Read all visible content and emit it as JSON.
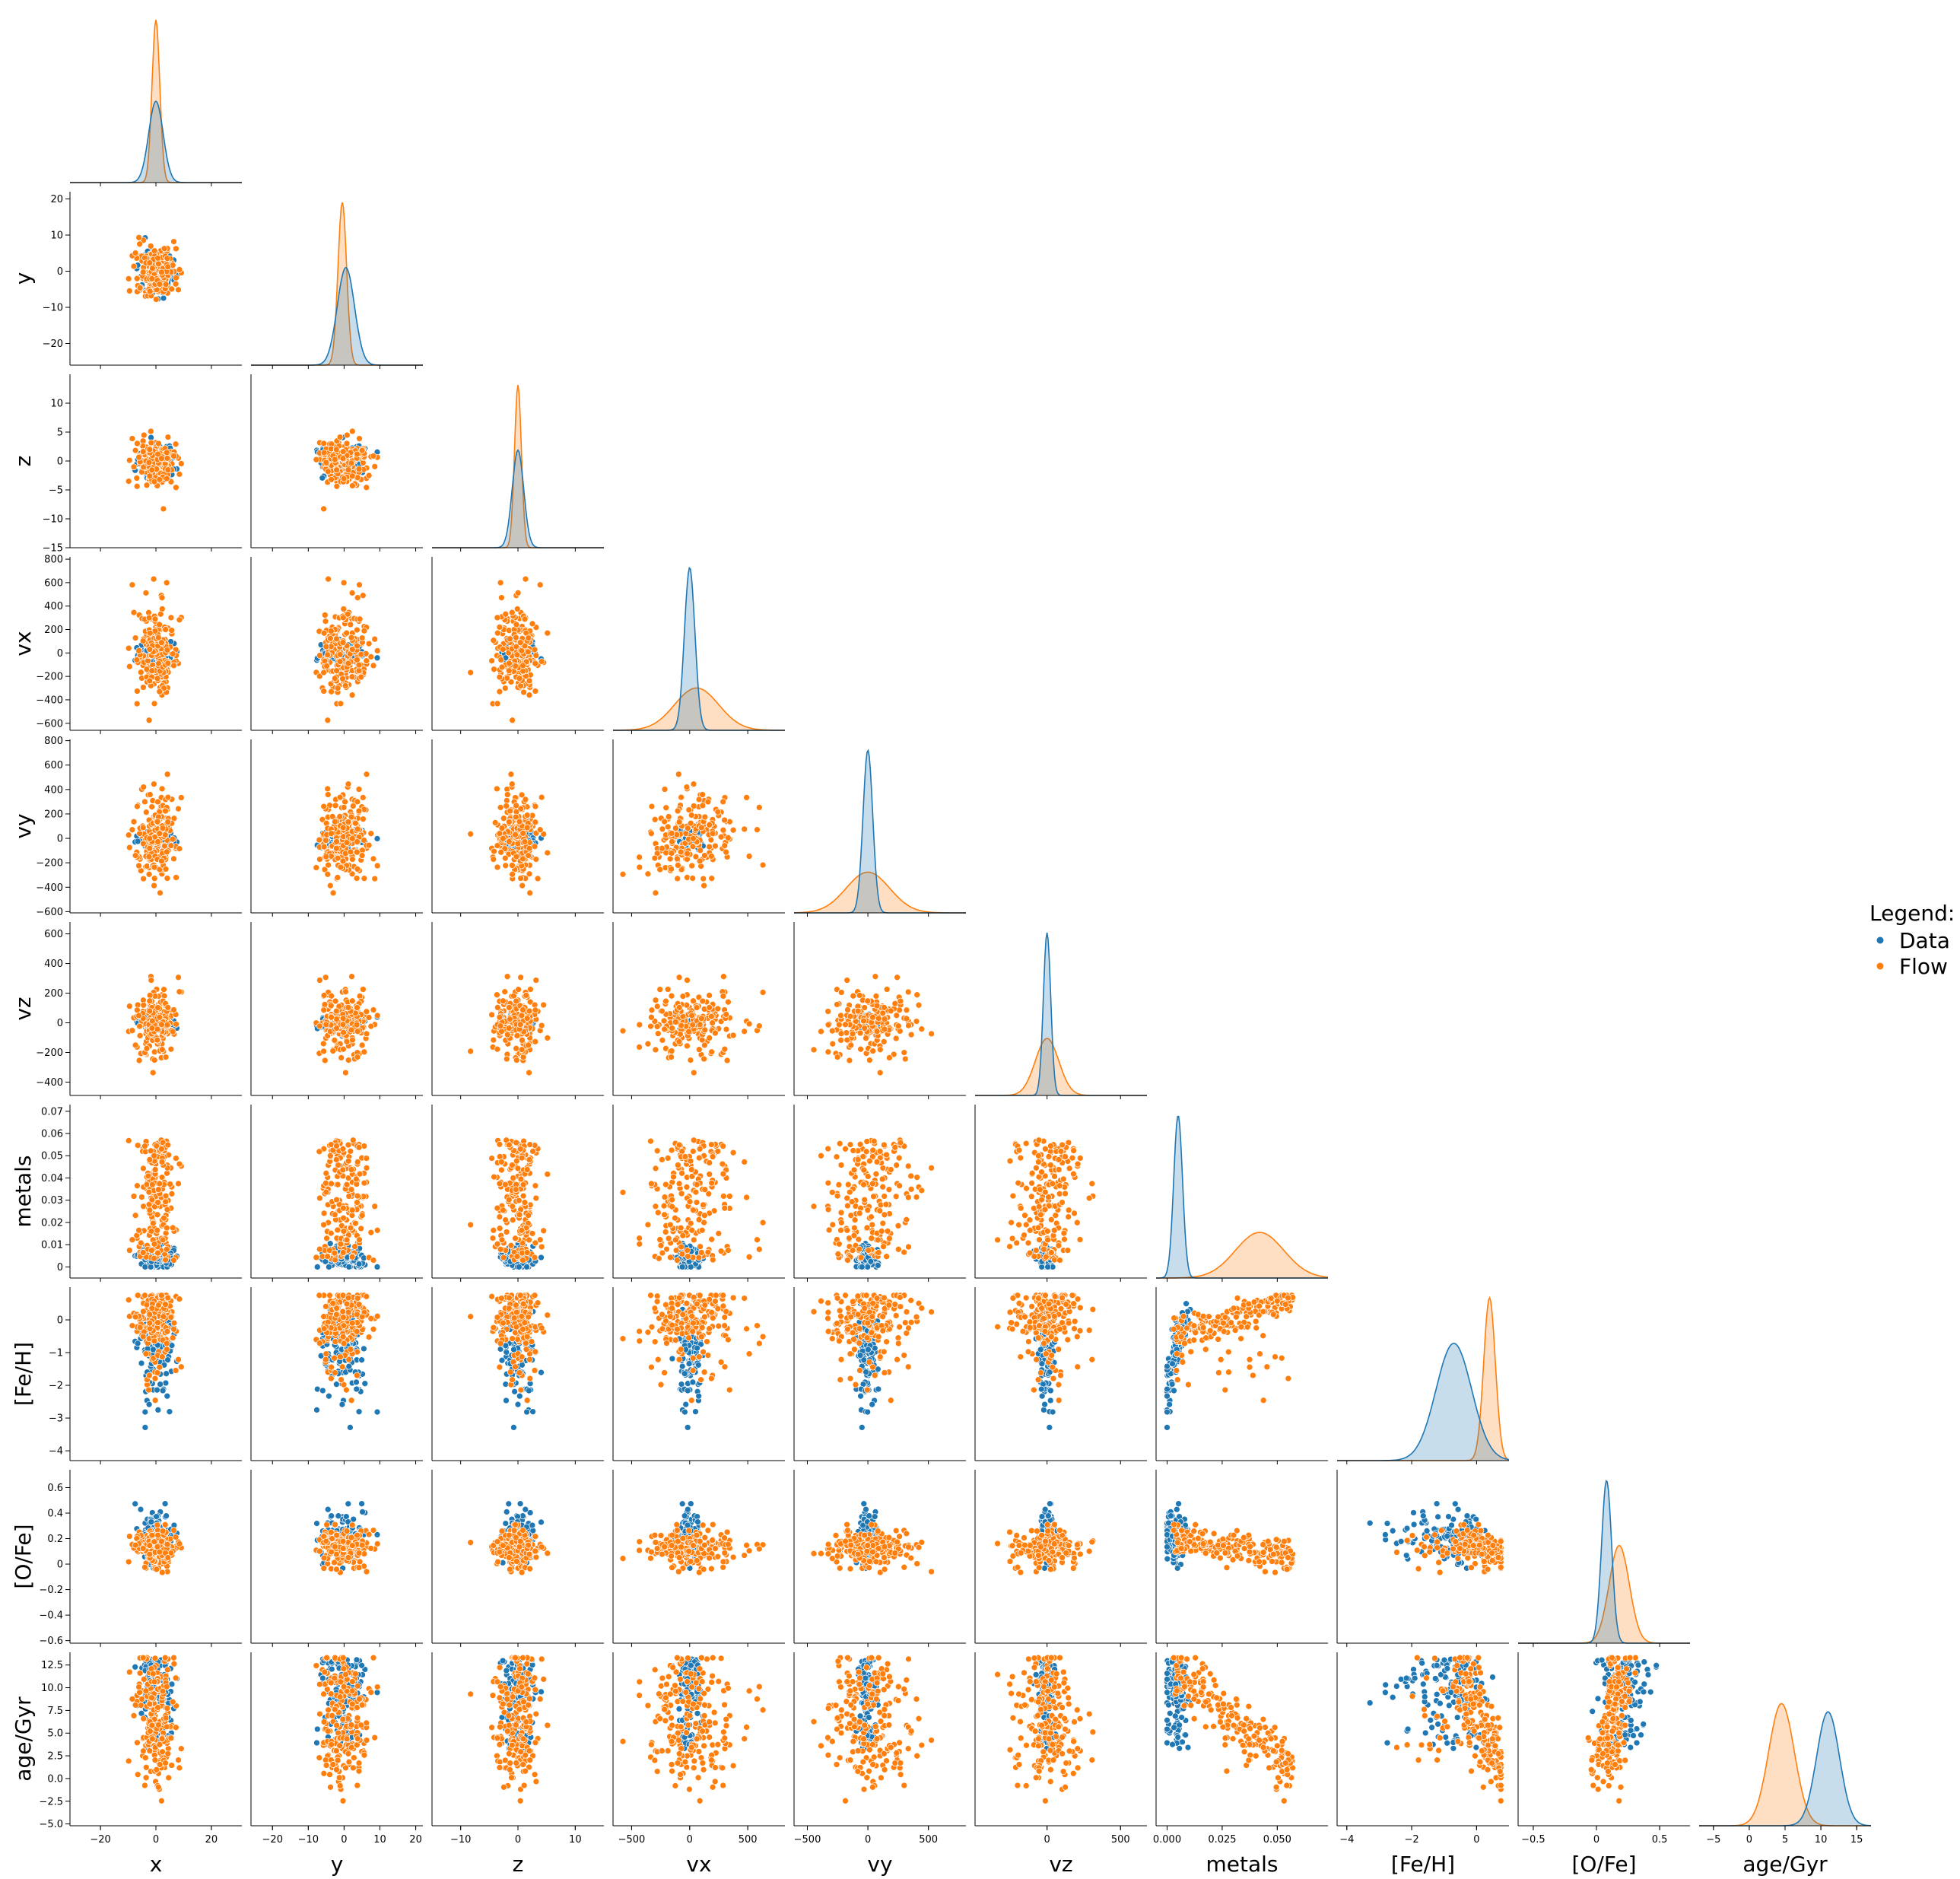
{
  "chart_data": {
    "type": "scatter",
    "layout": "pairplot-corner",
    "grid": false,
    "legend": {
      "title": "Legend:",
      "placement": "right",
      "entries": [
        {
          "name": "Data",
          "color": "#1f77b4"
        },
        {
          "name": "Flow",
          "color": "#ff7f0e"
        }
      ]
    },
    "series": [
      {
        "name": "Data",
        "color": "#1f77b4"
      },
      {
        "name": "Flow",
        "color": "#ff7f0e"
      }
    ],
    "variables": [
      {
        "key": "x",
        "label": "x",
        "range": [
          -31,
          31
        ],
        "ticks": [
          -20,
          0,
          20
        ]
      },
      {
        "key": "y",
        "label": "y",
        "range": [
          -26,
          22
        ],
        "ticks": [
          -20,
          -10,
          0,
          10,
          20
        ]
      },
      {
        "key": "z",
        "label": "z",
        "range": [
          -15,
          15
        ],
        "ticks": [
          -15,
          -10,
          -5,
          0,
          5,
          10
        ],
        "xticks": [
          -10,
          0,
          10
        ]
      },
      {
        "key": "vx",
        "label": "vx",
        "range": [
          -660,
          820
        ],
        "ticks": [
          -600,
          -400,
          -200,
          0,
          200,
          400,
          600,
          800
        ],
        "xticks": [
          -500,
          0,
          500
        ]
      },
      {
        "key": "vy",
        "label": "vy",
        "range": [
          -610,
          810
        ],
        "ticks": [
          -600,
          -400,
          -200,
          0,
          200,
          400,
          600,
          800
        ],
        "xticks": [
          -500,
          0,
          500
        ]
      },
      {
        "key": "vz",
        "label": "vz",
        "range": [
          -490,
          680
        ],
        "ticks": [
          -400,
          -200,
          0,
          200,
          400,
          600
        ],
        "xticks": [
          -500,
          0,
          500
        ]
      },
      {
        "key": "metals",
        "label": "metals",
        "range": [
          -0.005,
          0.073
        ],
        "ticks": [
          0.0,
          0.01,
          0.02,
          0.03,
          0.04,
          0.05,
          0.06,
          0.07
        ],
        "xticks": [
          0.0,
          0.025,
          0.05,
          0.075
        ],
        "xtick_labels": [
          "0.000",
          "0.025",
          "0.050",
          "0.075"
        ]
      },
      {
        "key": "feh",
        "label": "[Fe/H]",
        "range": [
          -4.3,
          1.0
        ],
        "ticks": [
          -4,
          -3,
          -2,
          -1,
          0
        ],
        "xticks": [
          -4,
          -2,
          0
        ]
      },
      {
        "key": "ofe",
        "label": "[O/Fe]",
        "range": [
          -0.62,
          0.74
        ],
        "ticks": [
          -0.6,
          -0.4,
          -0.2,
          0.0,
          0.2,
          0.4,
          0.6
        ],
        "xticks": [
          -0.5,
          0.0,
          0.5
        ]
      },
      {
        "key": "age",
        "label": "age/Gyr",
        "range": [
          -5.2,
          13.9
        ],
        "ticks": [
          -5.0,
          -2.5,
          0.0,
          2.5,
          5.0,
          7.5,
          10.0,
          12.5
        ],
        "ytick_labels": [
          "−5.0",
          "−2.5",
          "0.0",
          "2.5",
          "5.0",
          "7.5",
          "10.0",
          "12.5"
        ],
        "xticks": [
          -5,
          0,
          5,
          10,
          15
        ],
        "xrange": [
          -7,
          17
        ]
      }
    ],
    "kde": [
      {
        "var": "x",
        "Data": {
          "mean": 0,
          "sd": 2.6,
          "peak": 0.5
        },
        "Flow": {
          "mean": 0,
          "sd": 1.4,
          "peak": 1.0
        }
      },
      {
        "var": "y",
        "Data": {
          "mean": 0.5,
          "sd": 2.4,
          "peak": 0.6
        },
        "Flow": {
          "mean": -0.5,
          "sd": 1.2,
          "peak": 1.0
        }
      },
      {
        "var": "z",
        "Data": {
          "mean": 0,
          "sd": 1.0,
          "peak": 0.6
        },
        "Flow": {
          "mean": 0,
          "sd": 0.6,
          "peak": 1.0
        }
      },
      {
        "var": "vx",
        "Data": {
          "mean": 0,
          "sd": 45,
          "peak": 1.0
        },
        "Flow": {
          "mean": 60,
          "sd": 190,
          "peak": 0.26
        }
      },
      {
        "var": "vy",
        "Data": {
          "mean": 0,
          "sd": 40,
          "peak": 1.0
        },
        "Flow": {
          "mean": 0,
          "sd": 180,
          "peak": 0.25
        }
      },
      {
        "var": "vz",
        "Data": {
          "mean": 0,
          "sd": 25,
          "peak": 1.0
        },
        "Flow": {
          "mean": 0,
          "sd": 80,
          "peak": 0.35
        }
      },
      {
        "var": "metals",
        "Data": {
          "mean": 0.005,
          "sd": 0.002,
          "peak": 1.0
        },
        "Flow": {
          "mean": 0.042,
          "sd": 0.011,
          "peak": 0.28
        }
      },
      {
        "var": "feh",
        "Data": {
          "mean": -0.7,
          "sd": 0.55,
          "peak": 0.72
        },
        "Flow": {
          "mean": 0.4,
          "sd": 0.18,
          "peak": 1.0
        }
      },
      {
        "var": "ofe",
        "Data": {
          "mean": 0.08,
          "sd": 0.04,
          "peak": 1.0
        },
        "Flow": {
          "mean": 0.18,
          "sd": 0.08,
          "peak": 0.6
        }
      },
      {
        "var": "age",
        "Data": {
          "mean": 11,
          "sd": 1.6,
          "peak": 0.7
        },
        "Flow": {
          "mean": 4.5,
          "sd": 1.8,
          "peak": 0.75
        }
      }
    ]
  }
}
